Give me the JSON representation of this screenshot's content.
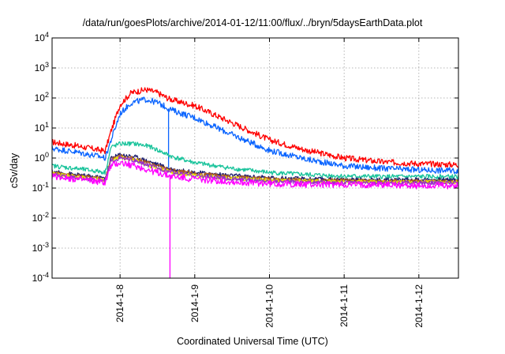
{
  "chart_data": {
    "type": "line",
    "title": "/data/run/goesPlots/archive/2014-01-12/11:00/flux/../bryn/5daysEarthData.plot",
    "xlabel": "Coordinated Universal Time (UTC)",
    "ylabel": "cSv/day",
    "x_unit": "days (2014-01)",
    "xlim": [
      7.09,
      12.53
    ],
    "ylim": [
      0.0001,
      10000
    ],
    "yscale": "log",
    "grid": true,
    "x_ticks": [
      {
        "value": 8,
        "label": "2014-1-8"
      },
      {
        "value": 9,
        "label": "2014-1-9"
      },
      {
        "value": 10,
        "label": "2014-1-10"
      },
      {
        "value": 11,
        "label": "2014-1-11"
      },
      {
        "value": 12,
        "label": "2014-1-12"
      }
    ],
    "y_ticks": [
      {
        "value": 0.0001,
        "base": "10",
        "exp": "-4"
      },
      {
        "value": 0.001,
        "base": "10",
        "exp": "-3"
      },
      {
        "value": 0.01,
        "base": "10",
        "exp": "-2"
      },
      {
        "value": 0.1,
        "base": "10",
        "exp": "-1"
      },
      {
        "value": 1,
        "base": "10",
        "exp": "0"
      },
      {
        "value": 10,
        "base": "10",
        "exp": "1"
      },
      {
        "value": 100,
        "base": "10",
        "exp": "2"
      },
      {
        "value": 1000,
        "base": "10",
        "exp": "3"
      },
      {
        "value": 10000,
        "base": "10",
        "exp": "4"
      }
    ],
    "series": [
      {
        "color": "#ff0000",
        "noise": 0.2,
        "drop": null,
        "points": [
          [
            7.09,
            3.4
          ],
          [
            7.4,
            2.6
          ],
          [
            7.75,
            1.8
          ],
          [
            7.8,
            1.7
          ],
          [
            7.88,
            8
          ],
          [
            8.0,
            60
          ],
          [
            8.15,
            150
          ],
          [
            8.35,
            190
          ],
          [
            8.5,
            150
          ],
          [
            8.65,
            95
          ],
          [
            8.75,
            80
          ],
          [
            9.0,
            55
          ],
          [
            9.5,
            15
          ],
          [
            10.0,
            4
          ],
          [
            10.5,
            1.8
          ],
          [
            11.0,
            1.0
          ],
          [
            11.5,
            0.75
          ],
          [
            12.0,
            0.65
          ],
          [
            12.53,
            0.6
          ]
        ]
      },
      {
        "color": "#0a64ff",
        "noise": 0.2,
        "drop": {
          "x": 8.65,
          "bottom": 0.5
        },
        "points": [
          [
            7.09,
            2.1
          ],
          [
            7.4,
            1.6
          ],
          [
            7.75,
            1.1
          ],
          [
            7.8,
            1.0
          ],
          [
            7.88,
            4
          ],
          [
            8.0,
            30
          ],
          [
            8.15,
            70
          ],
          [
            8.35,
            90
          ],
          [
            8.5,
            70
          ],
          [
            8.65,
            45
          ],
          [
            8.75,
            35
          ],
          [
            9.0,
            22
          ],
          [
            9.5,
            6
          ],
          [
            10.0,
            1.8
          ],
          [
            10.5,
            0.9
          ],
          [
            11.0,
            0.55
          ],
          [
            11.5,
            0.45
          ],
          [
            12.0,
            0.4
          ],
          [
            12.53,
            0.38
          ]
        ]
      },
      {
        "color": "#19c39b",
        "noise": 0.15,
        "drop": null,
        "points": [
          [
            7.09,
            0.55
          ],
          [
            7.4,
            0.45
          ],
          [
            7.75,
            0.35
          ],
          [
            7.8,
            0.33
          ],
          [
            7.88,
            2.3
          ],
          [
            8.0,
            3.0
          ],
          [
            8.2,
            3.0
          ],
          [
            8.4,
            2.4
          ],
          [
            8.7,
            1.1
          ],
          [
            9.0,
            0.7
          ],
          [
            9.5,
            0.45
          ],
          [
            10.0,
            0.33
          ],
          [
            10.5,
            0.28
          ],
          [
            11.0,
            0.25
          ],
          [
            11.5,
            0.24
          ],
          [
            12.0,
            0.24
          ],
          [
            12.53,
            0.24
          ]
        ]
      },
      {
        "color": "#1e1e6e",
        "noise": 0.14,
        "drop": null,
        "points": [
          [
            7.09,
            0.35
          ],
          [
            7.4,
            0.28
          ],
          [
            7.75,
            0.22
          ],
          [
            7.8,
            0.21
          ],
          [
            7.88,
            1.0
          ],
          [
            8.0,
            1.3
          ],
          [
            8.2,
            1.1
          ],
          [
            8.4,
            0.75
          ],
          [
            8.7,
            0.42
          ],
          [
            9.0,
            0.33
          ],
          [
            9.5,
            0.26
          ],
          [
            10.0,
            0.22
          ],
          [
            10.5,
            0.2
          ],
          [
            11.0,
            0.19
          ],
          [
            11.5,
            0.19
          ],
          [
            12.0,
            0.19
          ],
          [
            12.53,
            0.19
          ]
        ]
      },
      {
        "color": "#b05a1e",
        "noise": 0.13,
        "drop": null,
        "points": [
          [
            7.09,
            0.32
          ],
          [
            7.4,
            0.26
          ],
          [
            7.75,
            0.2
          ],
          [
            7.8,
            0.19
          ],
          [
            7.88,
            0.9
          ],
          [
            8.0,
            1.15
          ],
          [
            8.2,
            0.95
          ],
          [
            8.4,
            0.65
          ],
          [
            8.7,
            0.38
          ],
          [
            9.0,
            0.3
          ],
          [
            9.5,
            0.24
          ],
          [
            10.0,
            0.2
          ],
          [
            10.5,
            0.18
          ],
          [
            11.0,
            0.18
          ],
          [
            11.5,
            0.17
          ],
          [
            12.0,
            0.17
          ],
          [
            12.53,
            0.17
          ]
        ]
      },
      {
        "color": "#e6e600",
        "noise": 0.13,
        "drop": null,
        "points": [
          [
            7.09,
            0.3
          ],
          [
            7.4,
            0.24
          ],
          [
            7.75,
            0.19
          ],
          [
            7.8,
            0.18
          ],
          [
            7.88,
            0.85
          ],
          [
            8.0,
            1.05
          ],
          [
            8.2,
            0.85
          ],
          [
            8.4,
            0.55
          ],
          [
            8.7,
            0.33
          ],
          [
            9.0,
            0.26
          ],
          [
            9.5,
            0.21
          ],
          [
            10.0,
            0.18
          ],
          [
            10.5,
            0.17
          ],
          [
            11.0,
            0.16
          ],
          [
            11.5,
            0.16
          ],
          [
            12.0,
            0.16
          ],
          [
            12.53,
            0.16
          ]
        ]
      },
      {
        "color": "#9632c8",
        "noise": 0.13,
        "drop": null,
        "points": [
          [
            7.09,
            0.28
          ],
          [
            7.4,
            0.22
          ],
          [
            7.75,
            0.18
          ],
          [
            7.8,
            0.17
          ],
          [
            7.88,
            0.8
          ],
          [
            8.0,
            1.0
          ],
          [
            8.2,
            0.8
          ],
          [
            8.4,
            0.55
          ],
          [
            8.7,
            0.33
          ],
          [
            9.0,
            0.26
          ],
          [
            9.5,
            0.2
          ],
          [
            10.0,
            0.17
          ],
          [
            10.5,
            0.16
          ],
          [
            11.0,
            0.15
          ],
          [
            11.5,
            0.15
          ],
          [
            12.0,
            0.15
          ],
          [
            12.53,
            0.15
          ]
        ]
      },
      {
        "color": "#ff00ff",
        "noise": 0.22,
        "drop": {
          "x": 8.67,
          "bottom": 0.0001
        },
        "points": [
          [
            7.09,
            0.25
          ],
          [
            7.4,
            0.2
          ],
          [
            7.75,
            0.16
          ],
          [
            7.8,
            0.15
          ],
          [
            7.88,
            0.55
          ],
          [
            8.0,
            0.7
          ],
          [
            8.2,
            0.55
          ],
          [
            8.4,
            0.38
          ],
          [
            8.7,
            0.24
          ],
          [
            9.0,
            0.2
          ],
          [
            9.5,
            0.16
          ],
          [
            10.0,
            0.14
          ],
          [
            10.5,
            0.13
          ],
          [
            11.0,
            0.13
          ],
          [
            11.5,
            0.13
          ],
          [
            12.0,
            0.12
          ],
          [
            12.53,
            0.12
          ]
        ]
      }
    ]
  }
}
